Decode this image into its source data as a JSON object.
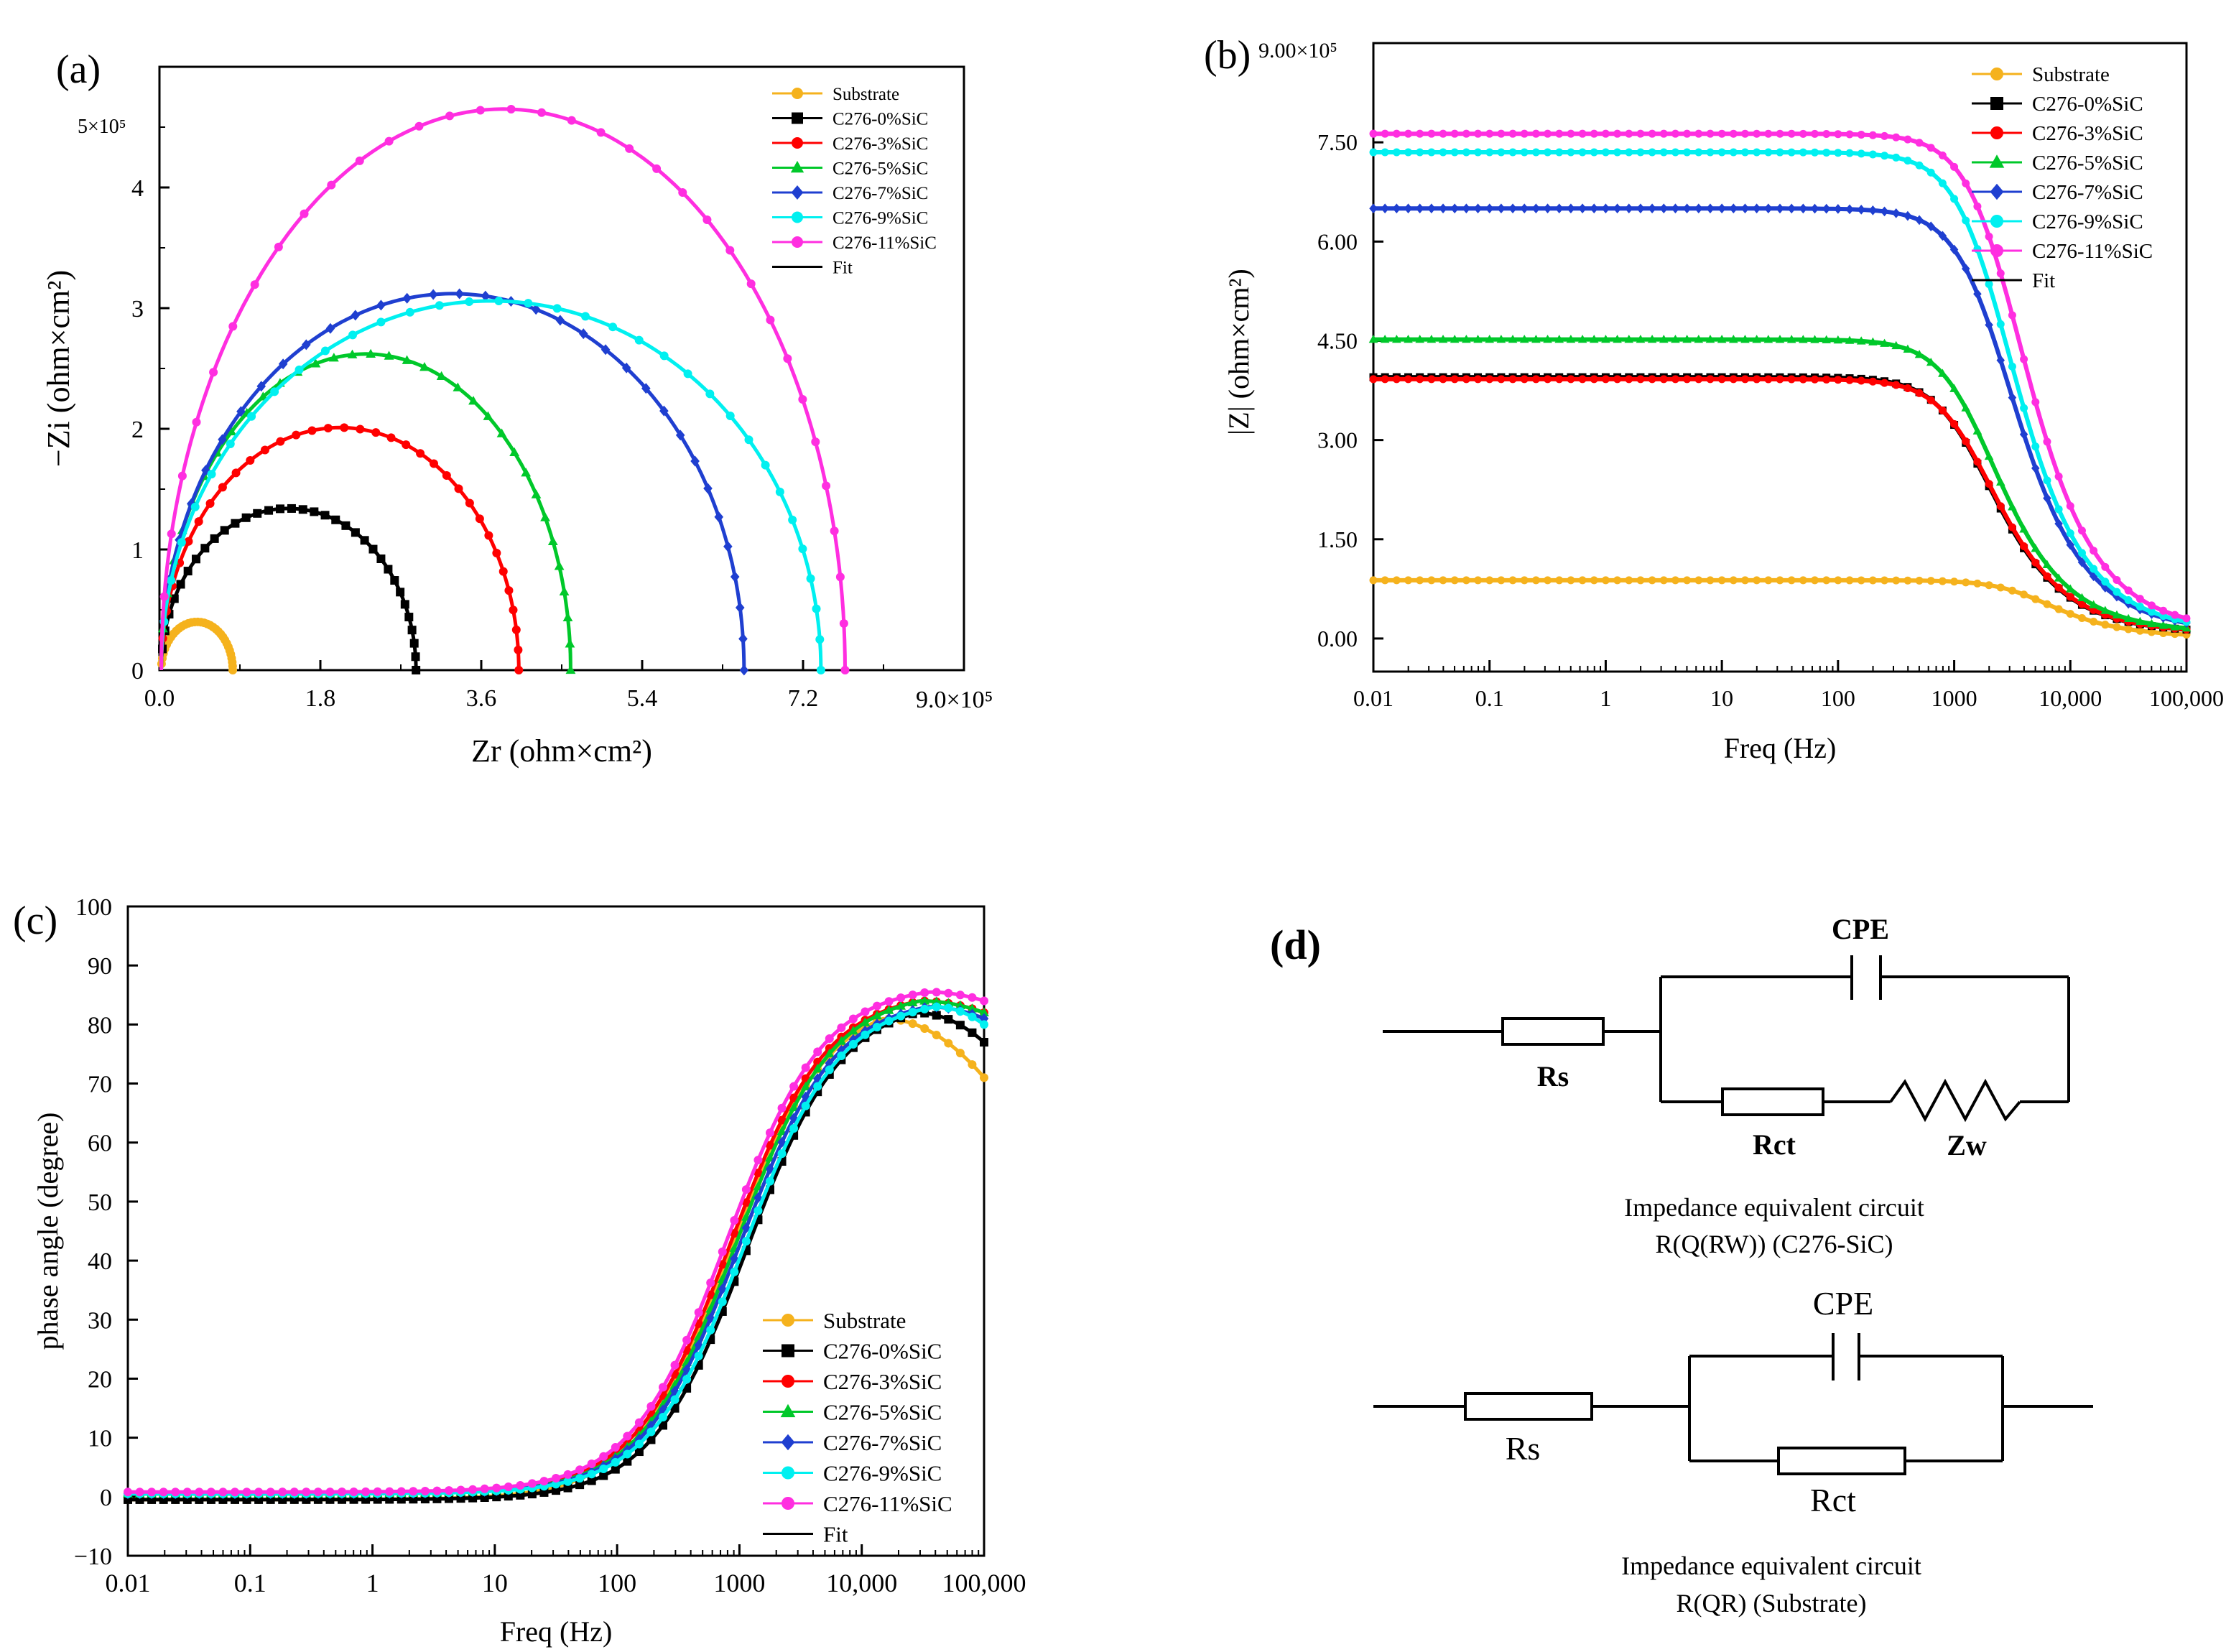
{
  "series_styles": [
    {
      "name": "Substrate",
      "color": "#f5b21d",
      "marker": "circle"
    },
    {
      "name": "C276-0%SiC",
      "color": "#000000",
      "marker": "square"
    },
    {
      "name": "C276-3%SiC",
      "color": "#ff0000",
      "marker": "circle"
    },
    {
      "name": "C276-5%SiC",
      "color": "#00c82a",
      "marker": "triangle"
    },
    {
      "name": "C276-7%SiC",
      "color": "#1f3fd0",
      "marker": "diamond"
    },
    {
      "name": "C276-9%SiC",
      "color": "#00f0f0",
      "marker": "circle"
    },
    {
      "name": "C276-11%SiC",
      "color": "#ff2ee0",
      "marker": "circle"
    }
  ],
  "fit_label": "Fit",
  "chart_data": [
    {
      "panel": "(a)",
      "type": "scatter",
      "title": "",
      "xlabel": "Zr (ohm×cm²)",
      "ylabel": "−Zi (ohm×cm²)",
      "xlim": [
        0,
        900000
      ],
      "ylim": [
        0,
        500000
      ],
      "x_tick_labels": [
        "0.0",
        "1.8",
        "3.6",
        "5.4",
        "7.2"
      ],
      "x_tick_values": [
        0,
        180000,
        360000,
        540000,
        720000
      ],
      "x_scale_label": "9.0×10⁵",
      "y_tick_labels": [
        "0",
        "1",
        "2",
        "3",
        "4"
      ],
      "y_tick_values": [
        0,
        100000,
        200000,
        300000,
        400000
      ],
      "y_scale_label": "5×10⁵",
      "legend_position": "top-right",
      "arcs": [
        {
          "name": "Substrate",
          "rs": 2000,
          "rct": 80000,
          "peak": 40000
        },
        {
          "name": "C276-0%SiC",
          "rs": 2000,
          "rct": 285000,
          "peak": 134000
        },
        {
          "name": "C276-3%SiC",
          "rs": 2000,
          "rct": 400000,
          "peak": 201000
        },
        {
          "name": "C276-5%SiC",
          "rs": 2000,
          "rct": 458000,
          "peak": 262000
        },
        {
          "name": "C276-7%SiC",
          "rs": 2000,
          "rct": 652000,
          "peak": 312000
        },
        {
          "name": "C276-9%SiC",
          "rs": 2000,
          "rct": 738000,
          "peak": 306000
        },
        {
          "name": "C276-11%SiC",
          "rs": 2000,
          "rct": 765000,
          "peak": 465000
        }
      ]
    },
    {
      "panel": "(b)",
      "type": "line",
      "title": "",
      "xlabel": "Freq (Hz)",
      "ylabel": "|Z| (ohm×cm²)",
      "x_scale": "log",
      "xlim": [
        0.01,
        100000
      ],
      "ylim": [
        -50000,
        900000
      ],
      "x_tick_labels": [
        "0.01",
        "0.1",
        "1",
        "10",
        "100",
        "1000",
        "10,000",
        "100,000"
      ],
      "x_tick_values": [
        0.01,
        0.1,
        1,
        10,
        100,
        1000,
        10000,
        100000
      ],
      "y_tick_labels": [
        "0.00",
        "1.50",
        "3.00",
        "4.50",
        "6.00",
        "7.50"
      ],
      "y_tick_values": [
        0,
        150000,
        300000,
        450000,
        600000,
        750000
      ],
      "y_scale_label": "9.00×10⁵",
      "legend_position": "top-right",
      "series": [
        {
          "name": "Substrate",
          "plateau": 88000,
          "corner_hz": 4500,
          "floor": 2000
        },
        {
          "name": "C276-0%SiC",
          "plateau": 395000,
          "corner_hz": 1400,
          "floor": 8000
        },
        {
          "name": "C276-3%SiC",
          "plateau": 392000,
          "corner_hz": 1450,
          "floor": 8000
        },
        {
          "name": "C276-5%SiC",
          "plateau": 452000,
          "corner_hz": 1500,
          "floor": 9000
        },
        {
          "name": "C276-7%SiC",
          "plateau": 650000,
          "corner_hz": 2100,
          "floor": 10000
        },
        {
          "name": "C276-9%SiC",
          "plateau": 735000,
          "corner_hz": 2100,
          "floor": 10000
        },
        {
          "name": "C276-11%SiC",
          "plateau": 763000,
          "corner_hz": 2600,
          "floor": 11000
        }
      ]
    },
    {
      "panel": "(c)",
      "type": "line",
      "title": "",
      "xlabel": "Freq (Hz)",
      "ylabel": "phase angle (degree)",
      "x_scale": "log",
      "xlim": [
        0.01,
        100000
      ],
      "ylim": [
        -10,
        100
      ],
      "x_tick_labels": [
        "0.01",
        "0.1",
        "1",
        "10",
        "100",
        "1000",
        "10,000",
        "100,000"
      ],
      "x_tick_values": [
        0.01,
        0.1,
        1,
        10,
        100,
        1000,
        10000,
        100000
      ],
      "y_tick_labels": [
        "−10",
        "0",
        "10",
        "20",
        "30",
        "40",
        "50",
        "60",
        "70",
        "80",
        "90",
        "100"
      ],
      "y_tick_values": [
        -10,
        0,
        10,
        20,
        30,
        40,
        50,
        60,
        70,
        80,
        90,
        100
      ],
      "legend_position": "bottom-right",
      "series": [
        {
          "name": "Substrate",
          "low": -0.5,
          "mid_hz": 850,
          "peak": 81,
          "peak_hz": 15000,
          "end": 71
        },
        {
          "name": "C276-0%SiC",
          "low": -0.5,
          "mid_hz": 1150,
          "peak": 82,
          "peak_hz": 28000,
          "end": 77
        },
        {
          "name": "C276-3%SiC",
          "low": 0.5,
          "mid_hz": 850,
          "peak": 84,
          "peak_hz": 30000,
          "end": 82
        },
        {
          "name": "C276-5%SiC",
          "low": 0.5,
          "mid_hz": 950,
          "peak": 84,
          "peak_hz": 30000,
          "end": 82
        },
        {
          "name": "C276-7%SiC",
          "low": 0.5,
          "mid_hz": 1000,
          "peak": 83,
          "peak_hz": 35000,
          "end": 81
        },
        {
          "name": "C276-9%SiC",
          "low": 0.5,
          "mid_hz": 1100,
          "peak": 83,
          "peak_hz": 40000,
          "end": 80
        },
        {
          "name": "C276-11%SiC",
          "low": 0.8,
          "mid_hz": 800,
          "peak": 85.5,
          "peak_hz": 35000,
          "end": 84
        }
      ]
    }
  ],
  "circuits": {
    "panel_label": "(d)",
    "circuit1": {
      "cpe_label": "CPE",
      "rs_label": "Rs",
      "rct_label": "Rct",
      "zw_label": "Zw",
      "caption_line1": "Impedance equivalent circuit",
      "caption_line2": "R(Q(RW))  (C276-SiC)"
    },
    "circuit2": {
      "cpe_label": "CPE",
      "rs_label": "Rs",
      "rct_label": "Rct",
      "caption_line1": "Impedance equivalent circuit",
      "caption_line2": "R(QR)  (Substrate)"
    }
  }
}
